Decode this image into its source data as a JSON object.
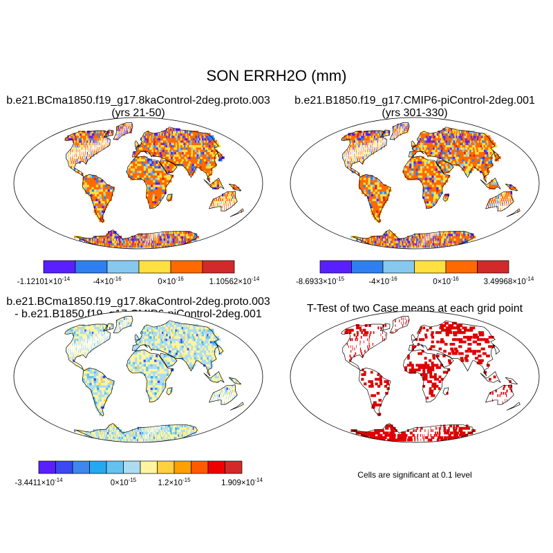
{
  "title": "SON ERRH2O (mm)",
  "colors": {
    "land_base": [
      "#ff8c00",
      "#f2a900",
      "#ffd700",
      "#ff6a00"
    ],
    "diff_base": [
      "#fff3a0",
      "#bfe1f0",
      "#a8d8ea",
      "#fffacd"
    ],
    "ocean": "#ffffff",
    "coast": "#000000",
    "sig": "#dd0000"
  },
  "panels": [
    {
      "title_line1": "b.e21.BCma1850.f19_g17.8kaControl-2deg.proto.003",
      "title_line2": "(yrs 21-50)",
      "colorbar": {
        "colors": [
          "#5a1fff",
          "#2f7ff0",
          "#87c8ee",
          "#ffe040",
          "#ff6a00",
          "#d22a2a"
        ],
        "labels": [
          {
            "mant": "-1.12101",
            "exp": "-14"
          },
          {
            "mant": "-4",
            "exp": "-16"
          },
          {
            "mant": "0",
            "exp": "-16"
          },
          {
            "mant": "1.10562",
            "exp": "-14"
          }
        ]
      }
    },
    {
      "title_line1": "b.e21.B1850.f19_g17.CMIP6-piControl-2deg.001",
      "title_line2": "(yrs 301-330)",
      "colorbar": {
        "colors": [
          "#5a1fff",
          "#2f7ff0",
          "#87c8ee",
          "#ffe040",
          "#ff6a00",
          "#d22a2a"
        ],
        "labels": [
          {
            "mant": "-8.6933",
            "exp": "-15"
          },
          {
            "mant": "-4",
            "exp": "-16"
          },
          {
            "mant": "0",
            "exp": "-16"
          },
          {
            "mant": "3.49968",
            "exp": "-14"
          }
        ]
      }
    },
    {
      "title_line1": "b.e21.BCma1850.f19_g17.8kaControl-2deg.proto.003",
      "title_line2": "- b.e21.B1850.f19_g17.CMIP6-piControl-2deg.001",
      "colorbar": {
        "colors": [
          "#5a1fff",
          "#3b49f0",
          "#3f86ee",
          "#26a8f0",
          "#63c2f0",
          "#acdcf2",
          "#fff5a0",
          "#ffd040",
          "#ffa000",
          "#ff5a00",
          "#ee0000",
          "#d22a2a"
        ],
        "labels": [
          {
            "mant": "-3.4411",
            "exp": "-14"
          },
          {
            "mant": "0",
            "exp": "-15"
          },
          {
            "mant": "1.2",
            "exp": "-15"
          },
          {
            "mant": "1.909",
            "exp": "-14"
          }
        ]
      }
    },
    {
      "title_line1": "T-Test of two Case means at each grid point",
      "note": "Cells are significant at 0.1 level"
    }
  ]
}
